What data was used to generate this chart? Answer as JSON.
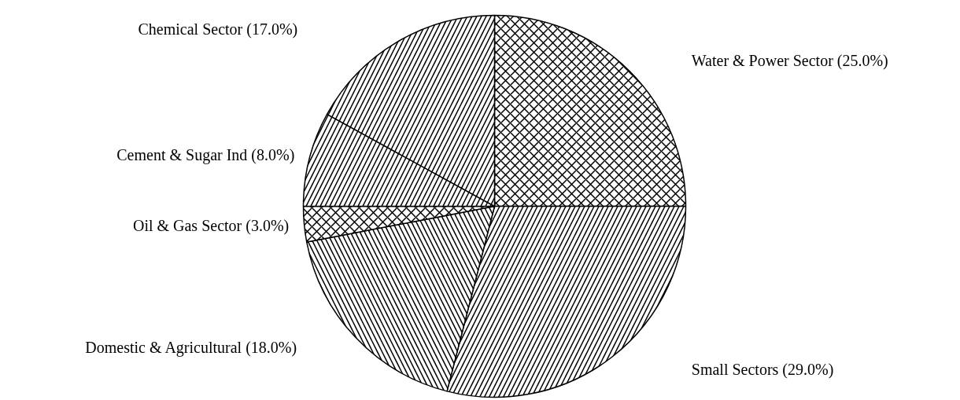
{
  "chart_data": {
    "type": "pie",
    "categories": [
      "Water & Power Sector (25.0%)",
      "Small Sectors (29.0%)",
      "Domestic & Agricultural (18.0%)",
      "Oil & Gas Sector (3.0%)",
      "Cement & Sugar Ind (8.0%)",
      "Chemical Sector (17.0%)"
    ],
    "values": [
      25.0,
      29.0,
      18.0,
      3.0,
      8.0,
      17.0
    ],
    "colors": [
      "#ffffff",
      "#ffffff",
      "#ffffff",
      "#ffffff",
      "#ffffff",
      "#ffffff"
    ]
  }
}
